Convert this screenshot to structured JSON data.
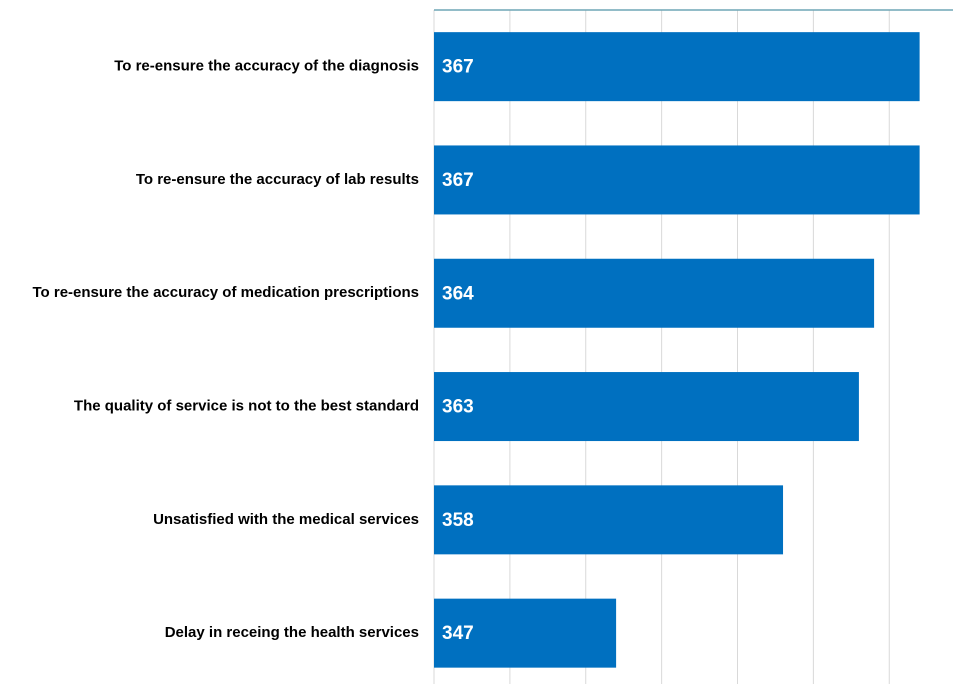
{
  "chart_data": {
    "type": "barh",
    "categories": [
      "To re-ensure the accuracy of the diagnosis",
      "To re-ensure the accuracy of lab results",
      "To re-ensure the accuracy of medication prescriptions",
      "The quality of service is not to the best standard",
      "Unsatisfied with the medical services",
      "Delay in receing the health services"
    ],
    "values": [
      367,
      367,
      364,
      363,
      358,
      347
    ],
    "color": "#0070c0",
    "xlim": [
      335,
      369.2
    ],
    "xticks": [
      335,
      340,
      345,
      350,
      355,
      360,
      365
    ],
    "grid": true
  }
}
